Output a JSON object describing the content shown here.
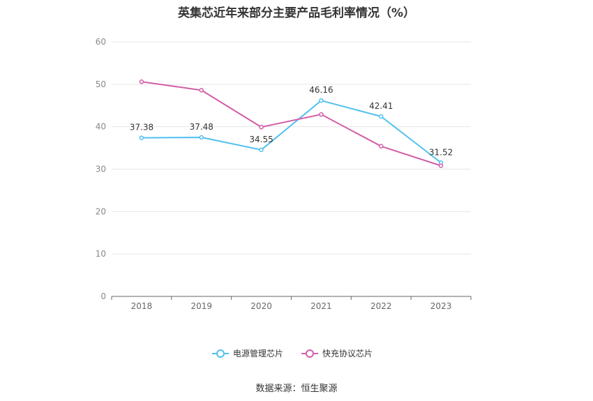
{
  "chart_data": {
    "type": "line",
    "title": "英集芯近年来部分主要产品毛利率情况（%）",
    "x": [
      "2018",
      "2019",
      "2020",
      "2021",
      "2022",
      "2023"
    ],
    "ylim": [
      0,
      60
    ],
    "yticks": [
      0,
      10,
      20,
      30,
      40,
      50,
      60
    ],
    "grid": true,
    "legend_position": "bottom-center",
    "series": [
      {
        "name": "电源管理芯片",
        "color": "#4fc0ee",
        "values": [
          37.38,
          37.48,
          34.55,
          46.16,
          42.41,
          31.52
        ],
        "labels": [
          "37.38",
          "37.48",
          "34.55",
          "46.16",
          "42.41",
          "31.52"
        ]
      },
      {
        "name": "快充协议芯片",
        "color": "#d25fa8",
        "values": [
          50.6,
          48.6,
          39.9,
          42.9,
          35.4,
          30.8
        ]
      }
    ]
  },
  "source": "数据来源：恒生聚源"
}
